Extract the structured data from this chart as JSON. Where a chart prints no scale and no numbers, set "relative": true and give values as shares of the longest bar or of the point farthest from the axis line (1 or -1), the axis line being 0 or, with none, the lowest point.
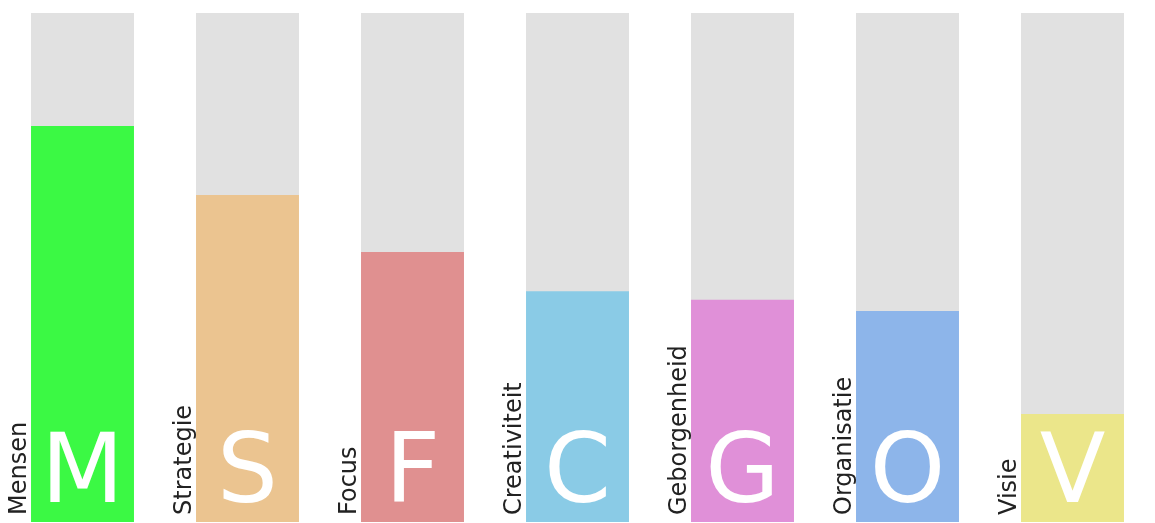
{
  "chart_data": {
    "type": "bar",
    "relative": true,
    "categories": [
      "Mensen",
      "Strategie",
      "Focus",
      "Creativiteit",
      "Geborgenheid",
      "Organisatie",
      "Visie"
    ],
    "values": [
      1,
      0.826,
      0.682,
      0.583,
      0.561,
      0.533,
      0.273
    ],
    "colors": [
      "#3bf944",
      "#ebc490",
      "#e09090",
      "#8acbe6",
      "#e090d8",
      "#8db5ea",
      "#ebe68a"
    ],
    "annotations": [
      "M",
      "S",
      "F",
      "C",
      "G",
      "O",
      "V"
    ],
    "tick_labels": false,
    "legend": false
  }
}
